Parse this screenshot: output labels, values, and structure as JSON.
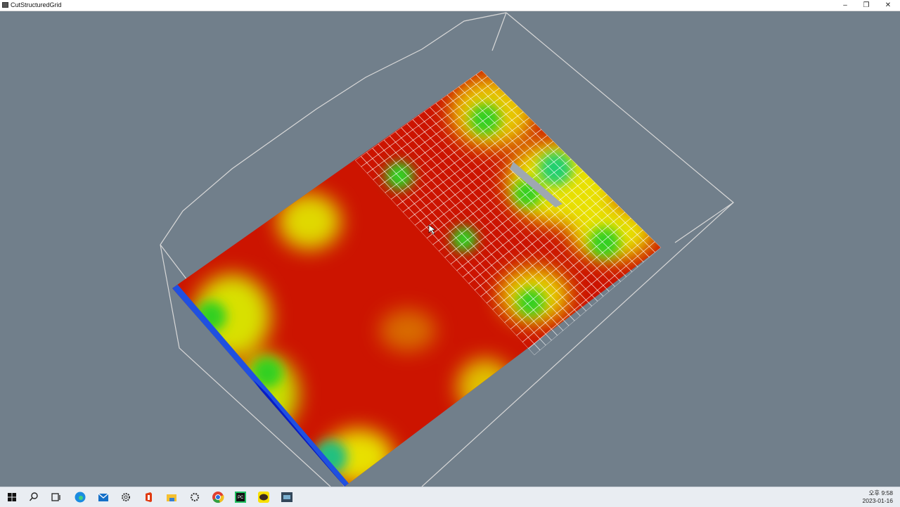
{
  "window": {
    "title": "CutStructuredGrid",
    "minimize": "–",
    "restore": "❐",
    "close": "✕"
  },
  "viewport": {
    "background": "#717f8b",
    "colormap": [
      "#0010c0",
      "#00c0ff",
      "#20e020",
      "#e8e000",
      "#cc1000"
    ]
  },
  "taskbar": {
    "icons": [
      "windows-start-icon",
      "search-icon",
      "task-view-icon",
      "edge-icon",
      "mail-icon",
      "settings-gear-icon",
      "office-icon",
      "file-explorer-icon",
      "settings-icon",
      "chrome-icon",
      "pycharm-icon",
      "kakaotalk-icon",
      "python-app-icon"
    ],
    "clock": {
      "time": "오후 9:58",
      "date": "2023-01-16"
    }
  }
}
